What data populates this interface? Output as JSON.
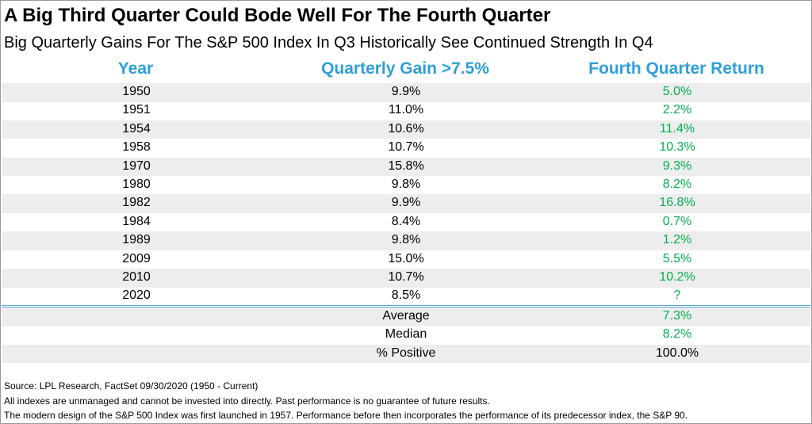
{
  "header": {
    "title": "A Big Third Quarter Could Bode Well For The Fourth Quarter",
    "subtitle": "Big Quarterly Gains For The S&P 500 Index In Q3 Historically See Continued Strength In Q4"
  },
  "table": {
    "columns": [
      "Year",
      "Quarterly Gain >7.5%",
      "Fourth Quarter Return"
    ],
    "rows": [
      [
        "1950",
        "9.9%",
        "5.0%"
      ],
      [
        "1951",
        "11.0%",
        "2.2%"
      ],
      [
        "1954",
        "10.6%",
        "11.4%"
      ],
      [
        "1958",
        "10.7%",
        "10.3%"
      ],
      [
        "1970",
        "15.8%",
        "9.3%"
      ],
      [
        "1980",
        "9.8%",
        "8.2%"
      ],
      [
        "1982",
        "9.9%",
        "16.8%"
      ],
      [
        "1984",
        "8.4%",
        "0.7%"
      ],
      [
        "1989",
        "9.8%",
        "1.2%"
      ],
      [
        "2009",
        "15.0%",
        "5.5%"
      ],
      [
        "2010",
        "10.7%",
        "10.2%"
      ],
      [
        "2020",
        "8.5%",
        "?"
      ]
    ],
    "summary": [
      [
        "Average",
        "7.3%"
      ],
      [
        "Median",
        "8.2%"
      ],
      [
        "% Positive",
        "100.0%"
      ]
    ]
  },
  "footnotes": [
    "Source: LPL Research, FactSet 09/30/2020 (1950 - Current)",
    "All indexes are unmanaged and cannot be invested into directly. Past performance is no guarantee of future results.",
    "The modern design of the S&P 500 Index was first launched in 1957. Performance before then incorporates the performance of its predecessor index, the S&P 90."
  ]
}
